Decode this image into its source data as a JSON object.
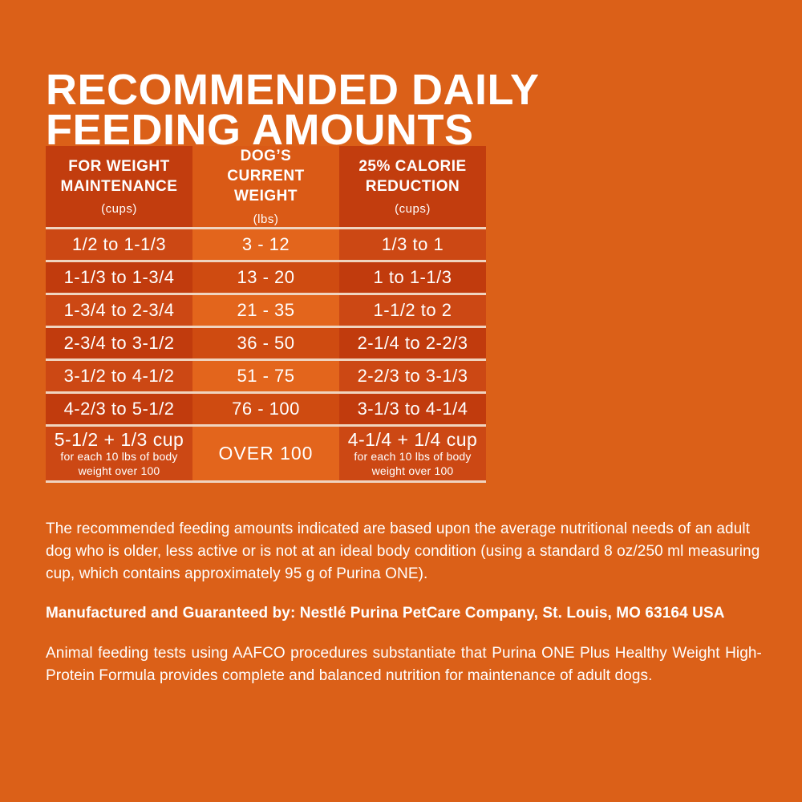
{
  "colors": {
    "bg": "#DB6018",
    "outer-header": "#C23D0E",
    "outer-light": "#CC4814",
    "outer-dark": "#C13B0D",
    "mid-header": "#DA5A16",
    "mid-light": "#E3651C",
    "mid-dark": "#CF4B11",
    "separator": "#F0D4BF",
    "text": "#FFFFFF"
  },
  "title": {
    "line1": "RECOMMENDED DAILY",
    "line2": "FEEDING AMOUNTS"
  },
  "table": {
    "headers": [
      {
        "title": "FOR WEIGHT MAINTENANCE",
        "unit": "(cups)"
      },
      {
        "title": "DOG’S CURRENT WEIGHT",
        "unit": "(lbs)"
      },
      {
        "title": "25% CALORIE REDUCTION",
        "unit": "(cups)"
      }
    ],
    "rows": [
      [
        "1/2 to 1-1/3",
        "3 - 12",
        "1/3 to 1"
      ],
      [
        "1-1/3 to 1-3/4",
        "13 - 20",
        "1 to 1-1/3"
      ],
      [
        "1-3/4 to 2-3/4",
        "21 - 35",
        "1-1/2 to 2"
      ],
      [
        "2-3/4 to 3-1/2",
        "36 - 50",
        "2-1/4 to 2-2/3"
      ],
      [
        "3-1/2 to 4-1/2",
        "51 - 75",
        "2-2/3 to 3-1/3"
      ],
      [
        "4-2/3 to 5-1/2",
        "76 - 100",
        "3-1/3 to 4-1/4"
      ]
    ],
    "last_row": {
      "maintenance_main": "5-1/2 + 1/3 cup",
      "maintenance_sub": "for each 10 lbs of body weight over 100",
      "weight": "OVER 100",
      "reduction_main": "4-1/4 + 1/4 cup",
      "reduction_sub": "for each 10 lbs of body weight over 100"
    }
  },
  "footnotes": {
    "basis": "The recommended feeding amounts indicated are based upon the average nutritional needs of an adult dog who is older, less active or is not at an ideal body condition (using a standard 8 oz/250 ml measuring cup, which contains approximately 95 g of Purina ONE).",
    "manufacturer": "Manufactured and Guaranteed by: Nestlé Purina PetCare Company, St. Louis, MO 63164 USA",
    "aafco": "Animal feeding tests using AAFCO procedures substantiate that Purina ONE Plus Healthy Weight High-Protein Formula provides complete and balanced nutrition for maintenance of adult dogs."
  }
}
